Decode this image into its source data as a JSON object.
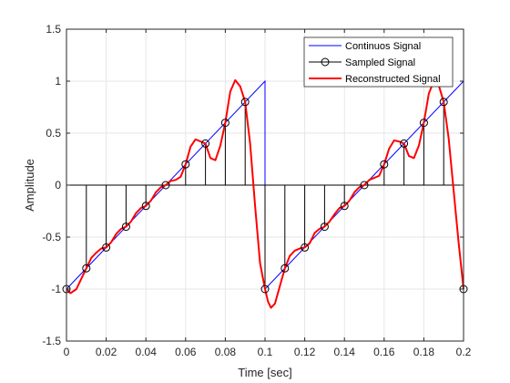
{
  "chart_data": {
    "type": "line",
    "title": "",
    "xlabel": "Time [sec]",
    "ylabel": "Amplitude",
    "xlim": [
      0,
      0.2
    ],
    "ylim": [
      -1.5,
      1.5
    ],
    "xticks": [
      0,
      0.02,
      0.04,
      0.06,
      0.08,
      0.1,
      0.12,
      0.14,
      0.16,
      0.18,
      0.2
    ],
    "xtick_labels": [
      "0",
      "0.02",
      "0.04",
      "0.06",
      "0.08",
      "0.1",
      "0.12",
      "0.14",
      "0.16",
      "0.18",
      "0.2"
    ],
    "yticks": [
      -1.5,
      -1,
      -0.5,
      0,
      0.5,
      1,
      1.5
    ],
    "ytick_labels": [
      "-1.5",
      "-1",
      "-0.5",
      "0",
      "0.5",
      "1",
      "1.5"
    ],
    "grid": true,
    "legend_position": "top-right",
    "series": [
      {
        "name": "Continuos Signal",
        "kind": "line",
        "color": "#0000ff",
        "x": [
          0,
          0.1,
          0.1,
          0.2,
          0.2
        ],
        "y": [
          -1,
          1,
          -1,
          1,
          -1
        ]
      },
      {
        "name": "Sampled Signal",
        "kind": "stem",
        "color": "#000000",
        "x": [
          0,
          0.01,
          0.02,
          0.03,
          0.04,
          0.05,
          0.06,
          0.07,
          0.08,
          0.09,
          0.1,
          0.11,
          0.12,
          0.13,
          0.14,
          0.15,
          0.16,
          0.17,
          0.18,
          0.19,
          0.2
        ],
        "y": [
          -1,
          -0.8,
          -0.6,
          -0.4,
          -0.2,
          0,
          0.2,
          0.4,
          0.6,
          0.8,
          -1,
          -0.8,
          -0.6,
          -0.4,
          -0.2,
          0,
          0.2,
          0.4,
          0.6,
          0.8,
          -1
        ]
      },
      {
        "name": "Reconstructed Signal",
        "kind": "line",
        "color": "#ff0000",
        "x": [
          0,
          0.002,
          0.005,
          0.0075,
          0.01,
          0.0125,
          0.015,
          0.0175,
          0.02,
          0.0225,
          0.025,
          0.0275,
          0.03,
          0.0325,
          0.035,
          0.0375,
          0.04,
          0.0425,
          0.045,
          0.0475,
          0.05,
          0.0525,
          0.055,
          0.0575,
          0.06,
          0.0625,
          0.065,
          0.0675,
          0.07,
          0.0725,
          0.075,
          0.0775,
          0.08,
          0.0825,
          0.085,
          0.0875,
          0.09,
          0.0925,
          0.095,
          0.0975,
          0.1,
          0.1015,
          0.103,
          0.105,
          0.1075,
          0.11,
          0.1125,
          0.115,
          0.1175,
          0.12,
          0.1225,
          0.125,
          0.1275,
          0.13,
          0.1325,
          0.135,
          0.1375,
          0.14,
          0.1425,
          0.145,
          0.1475,
          0.15,
          0.1525,
          0.155,
          0.1575,
          0.16,
          0.1625,
          0.165,
          0.1675,
          0.17,
          0.1725,
          0.175,
          0.1775,
          0.18,
          0.1825,
          0.185,
          0.1875,
          0.19,
          0.1925,
          0.195,
          0.1975,
          0.2
        ],
        "y": [
          -1,
          -1.04,
          -1.0,
          -0.9,
          -0.8,
          -0.7,
          -0.65,
          -0.61,
          -0.6,
          -0.55,
          -0.47,
          -0.42,
          -0.4,
          -0.35,
          -0.27,
          -0.22,
          -0.2,
          -0.15,
          -0.07,
          -0.02,
          0,
          0.04,
          0.05,
          0.08,
          0.2,
          0.37,
          0.44,
          0.42,
          0.4,
          0.26,
          0.24,
          0.38,
          0.6,
          0.9,
          1.01,
          0.95,
          0.8,
          0.4,
          -0.2,
          -0.75,
          -1.0,
          -1.12,
          -1.18,
          -1.14,
          -0.97,
          -0.8,
          -0.68,
          -0.63,
          -0.61,
          -0.6,
          -0.56,
          -0.46,
          -0.42,
          -0.4,
          -0.35,
          -0.28,
          -0.22,
          -0.2,
          -0.15,
          -0.07,
          -0.02,
          0,
          0.05,
          0.07,
          0.09,
          0.2,
          0.35,
          0.43,
          0.42,
          0.4,
          0.28,
          0.26,
          0.38,
          0.6,
          0.88,
          1.0,
          0.96,
          0.8,
          0.45,
          -0.05,
          -0.55,
          -1.0
        ]
      }
    ]
  }
}
